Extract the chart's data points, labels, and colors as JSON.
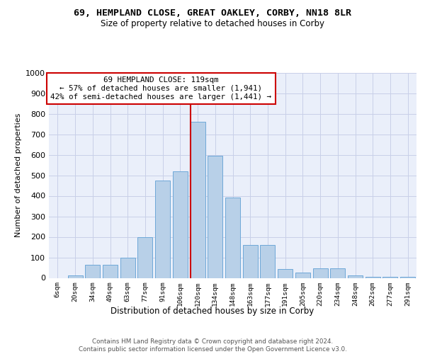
{
  "title": "69, HEMPLAND CLOSE, GREAT OAKLEY, CORBY, NN18 8LR",
  "subtitle": "Size of property relative to detached houses in Corby",
  "xlabel": "Distribution of detached houses by size in Corby",
  "ylabel": "Number of detached properties",
  "bar_labels": [
    "6sqm",
    "20sqm",
    "34sqm",
    "49sqm",
    "63sqm",
    "77sqm",
    "91sqm",
    "106sqm",
    "120sqm",
    "134sqm",
    "148sqm",
    "163sqm",
    "177sqm",
    "191sqm",
    "205sqm",
    "220sqm",
    "234sqm",
    "248sqm",
    "262sqm",
    "277sqm",
    "291sqm"
  ],
  "bar_values": [
    0,
    13,
    65,
    65,
    100,
    200,
    475,
    520,
    760,
    595,
    390,
    160,
    160,
    42,
    27,
    45,
    45,
    12,
    5,
    5,
    5
  ],
  "bar_color": "#b8d0e8",
  "bar_edgecolor": "#6ea8d8",
  "highlight_index": 8,
  "highlight_color": "#cc0000",
  "annotation_text": "69 HEMPLAND CLOSE: 119sqm\n← 57% of detached houses are smaller (1,941)\n42% of semi-detached houses are larger (1,441) →",
  "footnote": "Contains HM Land Registry data © Crown copyright and database right 2024.\nContains public sector information licensed under the Open Government Licence v3.0.",
  "ylim": [
    0,
    1000
  ],
  "yticks": [
    0,
    100,
    200,
    300,
    400,
    500,
    600,
    700,
    800,
    900,
    1000
  ],
  "bg_color": "#eaeffa",
  "grid_color": "#c8d0e8",
  "bar_width": 0.85
}
